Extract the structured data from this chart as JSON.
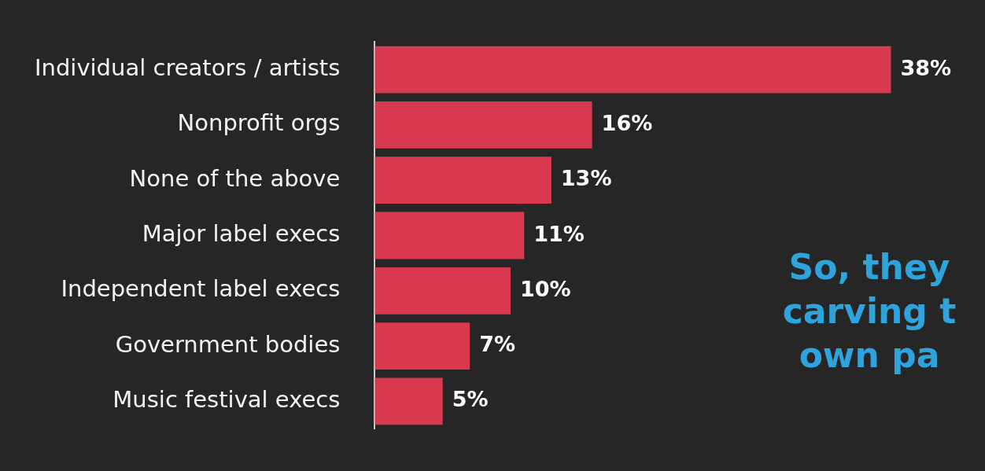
{
  "chart_data": {
    "type": "bar",
    "orientation": "horizontal",
    "categories": [
      "Individual creators / artists",
      "Nonprofit orgs",
      "None of the above",
      "Major label execs",
      "Independent label execs",
      "Government bodies",
      "Music festival execs"
    ],
    "values": [
      38,
      16,
      13,
      11,
      10,
      7,
      5
    ],
    "value_labels": [
      "38%",
      "16%",
      "13%",
      "11%",
      "10%",
      "7%",
      "5%"
    ],
    "color": "#d9394f",
    "tick_labels": "y",
    "annotations": [
      "So, they\ncarving t\nown pa"
    ]
  }
}
